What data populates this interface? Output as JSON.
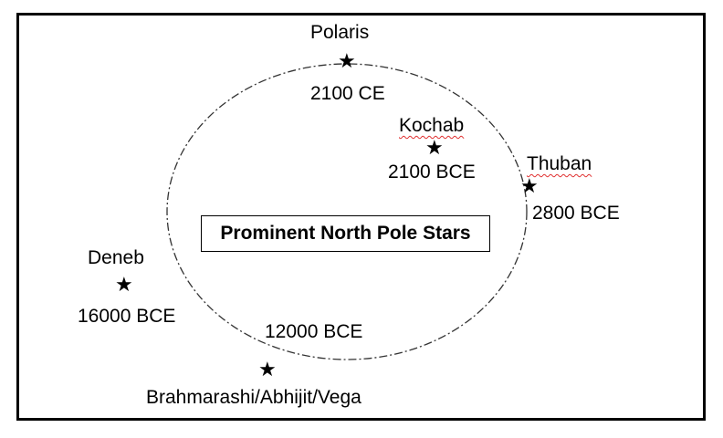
{
  "title": "Prominent North Pole Stars",
  "stars": [
    {
      "key": "polaris",
      "name": "Polaris",
      "date": "2100 CE"
    },
    {
      "key": "kochab",
      "name": "Kochab",
      "date": "2100 BCE"
    },
    {
      "key": "thuban",
      "name": "Thuban",
      "date": "2800 BCE"
    },
    {
      "key": "deneb",
      "name": "Deneb",
      "date": "16000 BCE"
    },
    {
      "key": "vega",
      "name": "Brahmarashi/Abhijit/Vega",
      "date": "12000 BCE"
    }
  ],
  "star_glyph": "star-icon"
}
